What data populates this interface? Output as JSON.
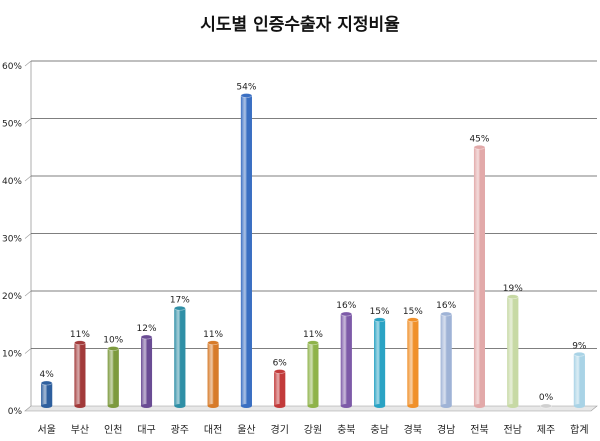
{
  "chart_data": {
    "type": "bar",
    "title": "시도별 인증수출자 지정비율",
    "xlabel": "",
    "ylabel": "",
    "ylim": [
      0,
      60
    ],
    "yticks": [
      "0%",
      "10%",
      "20%",
      "30%",
      "40%",
      "50%",
      "60%"
    ],
    "grid": true,
    "legend": "none",
    "categories": [
      "서울",
      "부산",
      "인천",
      "대구",
      "광주",
      "대전",
      "울산",
      "경기",
      "강원",
      "충북",
      "충남",
      "경북",
      "경남",
      "전북",
      "전남",
      "제주",
      "합계"
    ],
    "values": [
      4,
      11,
      10,
      12,
      17,
      11,
      54,
      6,
      11,
      16,
      15,
      15,
      16,
      45,
      19,
      0,
      9
    ],
    "data_labels": [
      "4%",
      "11%",
      "10%",
      "12%",
      "17%",
      "11%",
      "54%",
      "6%",
      "11%",
      "16%",
      "15%",
      "15%",
      "16%",
      "45%",
      "19%",
      "0%",
      "9%"
    ],
    "colors": [
      "#2e5f9e",
      "#a23a3a",
      "#7d9a3e",
      "#6a4c94",
      "#2f8fa6",
      "#d77b2a",
      "#3a6fc2",
      "#c23a3a",
      "#8fb34a",
      "#7d5aa8",
      "#2aa3c4",
      "#f0902a",
      "#9fb3d6",
      "#e2a9a9",
      "#c7d9a4",
      "#d0d0d0",
      "#a9d3e6"
    ]
  }
}
